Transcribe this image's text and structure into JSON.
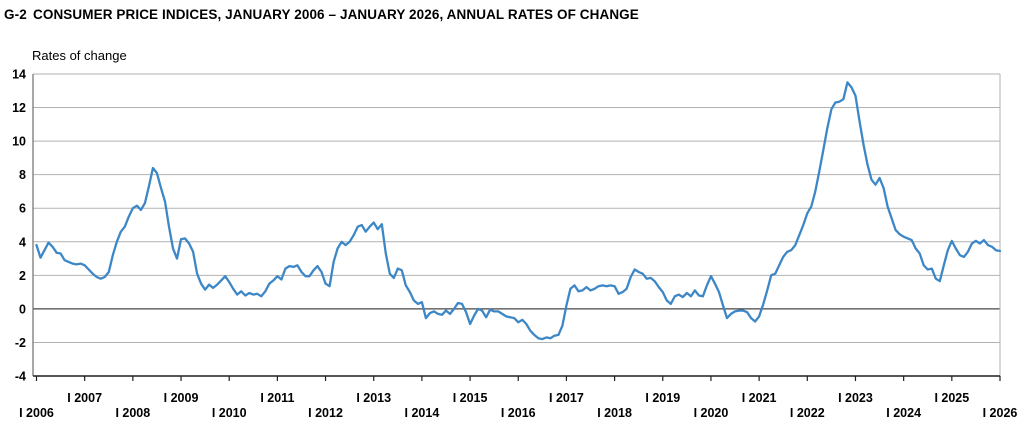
{
  "header": {
    "figure_number": "G-2",
    "title": "CONSUMER PRICE INDICES, JANUARY 2006 – JANUARY 2026, ANNUAL RATES OF CHANGE"
  },
  "chart_data": {
    "type": "line",
    "title": "G-2 CONSUMER PRICE INDICES, JANUARY 2006 – JANUARY 2026, ANNUAL RATES OF CHANGE",
    "ylabel": "Rates of change",
    "x_frequency": "monthly",
    "x_start": "2006-01",
    "x_end": "2026-01",
    "x_tick_labels": [
      "I 2006",
      "I 2007",
      "I 2008",
      "I 2009",
      "I 2010",
      "I 2011",
      "I 2012",
      "I 2013",
      "I 2014",
      "I 2015",
      "I 2016",
      "I 2017",
      "I 2018",
      "I 2019",
      "I 2020",
      "I 2021",
      "I 2022",
      "I 2023",
      "I 2024",
      "I 2025",
      "I 2026"
    ],
    "y_ticks": [
      14,
      12,
      10,
      8,
      6,
      4,
      2,
      0,
      -2,
      -4
    ],
    "ylim": [
      -4,
      14
    ],
    "grid": true,
    "legend": "none",
    "line_color": "#3d87c6",
    "series": [
      {
        "name": "Annual rate of change (%)",
        "values": [
          3.8,
          3.05,
          3.5,
          3.95,
          3.7,
          3.35,
          3.3,
          2.9,
          2.8,
          2.7,
          2.65,
          2.7,
          2.6,
          2.35,
          2.1,
          1.9,
          1.8,
          1.9,
          2.2,
          3.2,
          4.0,
          4.6,
          4.9,
          5.5,
          6.0,
          6.15,
          5.9,
          6.3,
          7.3,
          8.4,
          8.1,
          7.2,
          6.4,
          4.9,
          3.6,
          3.0,
          4.15,
          4.2,
          3.9,
          3.4,
          2.1,
          1.5,
          1.15,
          1.45,
          1.25,
          1.45,
          1.7,
          1.95,
          1.6,
          1.2,
          0.85,
          1.05,
          0.8,
          0.95,
          0.85,
          0.9,
          0.75,
          1.05,
          1.5,
          1.7,
          1.95,
          1.75,
          2.4,
          2.55,
          2.5,
          2.6,
          2.2,
          1.95,
          1.95,
          2.3,
          2.55,
          2.2,
          1.5,
          1.35,
          2.8,
          3.6,
          4.0,
          3.8,
          4.0,
          4.4,
          4.9,
          5.0,
          4.6,
          4.9,
          5.15,
          4.75,
          5.05,
          3.3,
          2.1,
          1.85,
          2.4,
          2.3,
          1.4,
          1.0,
          0.5,
          0.3,
          0.4,
          -0.55,
          -0.25,
          -0.15,
          -0.3,
          -0.35,
          -0.1,
          -0.3,
          0.0,
          0.35,
          0.3,
          -0.2,
          -0.9,
          -0.4,
          0.0,
          -0.1,
          -0.5,
          -0.05,
          -0.15,
          -0.15,
          -0.3,
          -0.45,
          -0.5,
          -0.55,
          -0.8,
          -0.65,
          -0.9,
          -1.3,
          -1.55,
          -1.75,
          -1.8,
          -1.7,
          -1.75,
          -1.6,
          -1.55,
          -1.0,
          0.2,
          1.2,
          1.4,
          1.05,
          1.1,
          1.3,
          1.1,
          1.2,
          1.35,
          1.4,
          1.35,
          1.4,
          1.35,
          0.9,
          1.0,
          1.2,
          1.9,
          2.35,
          2.2,
          2.1,
          1.8,
          1.85,
          1.65,
          1.3,
          1.0,
          0.5,
          0.3,
          0.75,
          0.85,
          0.7,
          0.95,
          0.75,
          1.1,
          0.8,
          0.75,
          1.4,
          1.95,
          1.5,
          1.0,
          0.2,
          -0.55,
          -0.3,
          -0.15,
          -0.1,
          -0.1,
          -0.2,
          -0.55,
          -0.75,
          -0.45,
          0.25,
          1.1,
          2.0,
          2.1,
          2.6,
          3.1,
          3.4,
          3.5,
          3.8,
          4.4,
          5.0,
          5.7,
          6.1,
          7.0,
          8.2,
          9.5,
          10.8,
          11.9,
          12.3,
          12.35,
          12.5,
          13.5,
          13.2,
          12.7,
          11.2,
          9.8,
          8.6,
          7.7,
          7.4,
          7.8,
          7.2,
          6.1,
          5.4,
          4.7,
          4.45,
          4.3,
          4.2,
          4.1,
          3.6,
          3.3,
          2.6,
          2.35,
          2.4,
          1.8,
          1.65,
          2.6,
          3.5,
          4.05,
          3.6,
          3.2,
          3.1,
          3.4,
          3.9,
          4.05,
          3.9,
          4.1,
          3.8,
          3.7,
          3.5,
          3.45
        ]
      }
    ]
  },
  "colors": {
    "line": "#3d87c6",
    "gridline": "#b2b2b2",
    "zero_line": "#474747",
    "axis": "#1f1f1f",
    "left_border": "#6e6e6e",
    "right_border": "#b2b2b2",
    "text": "#000000",
    "background": "#ffffff"
  }
}
